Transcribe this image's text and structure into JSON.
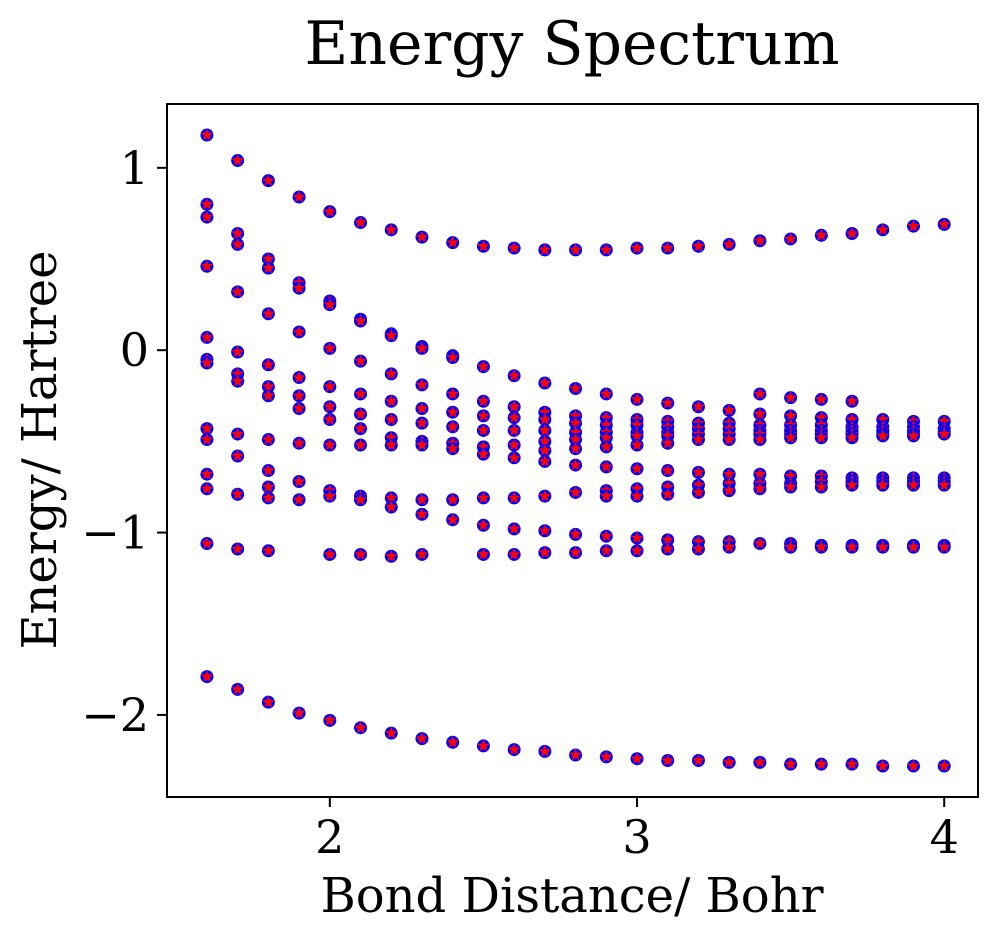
{
  "chart_data": {
    "type": "scatter",
    "title": "Energy Spectrum",
    "xlabel": "Bond Distance/ Bohr",
    "ylabel": "Energy/ Hartree",
    "xlim": [
      1.47,
      4.11
    ],
    "ylim": [
      -2.45,
      1.35
    ],
    "xticks": [
      2,
      3,
      4
    ],
    "xtick_labels": [
      "2",
      "3",
      "4"
    ],
    "yticks": [
      1,
      0,
      -1,
      -2
    ],
    "ytick_labels": [
      "1",
      "0",
      "−1",
      "−2"
    ],
    "grid": false,
    "legend": null,
    "marker_styles": {
      "exact": {
        "shape": "circle",
        "color": "#0000ff"
      },
      "computed": {
        "shape": "star",
        "color": "#ff0000"
      }
    },
    "x": [
      1.6,
      1.7,
      1.8,
      1.9,
      2.0,
      2.1,
      2.2,
      2.3,
      2.4,
      2.5,
      2.6,
      2.7,
      2.8,
      2.9,
      3.0,
      3.1,
      3.2,
      3.3,
      3.4,
      3.5,
      3.6,
      3.7,
      3.8,
      3.9,
      4.0
    ],
    "levels": [
      [
        1.6,
        1.18
      ],
      [
        1.6,
        0.8
      ],
      [
        1.6,
        0.73
      ],
      [
        1.6,
        0.46
      ],
      [
        1.6,
        0.07
      ],
      [
        1.6,
        -0.05
      ],
      [
        1.6,
        -0.07
      ],
      [
        1.6,
        -0.43
      ],
      [
        1.6,
        -0.49
      ],
      [
        1.6,
        -0.68
      ],
      [
        1.6,
        -0.76
      ],
      [
        1.6,
        -1.06
      ],
      [
        1.6,
        -1.79
      ],
      [
        1.7,
        1.04
      ],
      [
        1.7,
        0.64
      ],
      [
        1.7,
        0.58
      ],
      [
        1.7,
        0.32
      ],
      [
        1.7,
        -0.01
      ],
      [
        1.7,
        -0.13
      ],
      [
        1.7,
        -0.17
      ],
      [
        1.7,
        -0.46
      ],
      [
        1.7,
        -0.58
      ],
      [
        1.7,
        -0.79
      ],
      [
        1.7,
        -1.09
      ],
      [
        1.7,
        -1.86
      ],
      [
        1.8,
        0.93
      ],
      [
        1.8,
        0.5
      ],
      [
        1.8,
        0.45
      ],
      [
        1.8,
        0.2
      ],
      [
        1.8,
        -0.08
      ],
      [
        1.8,
        -0.2
      ],
      [
        1.8,
        -0.25
      ],
      [
        1.8,
        -0.49
      ],
      [
        1.8,
        -0.66
      ],
      [
        1.8,
        -0.75
      ],
      [
        1.8,
        -0.81
      ],
      [
        1.8,
        -1.1
      ],
      [
        1.8,
        -1.93
      ],
      [
        1.9,
        0.84
      ],
      [
        1.9,
        0.37
      ],
      [
        1.9,
        0.34
      ],
      [
        1.9,
        0.1
      ],
      [
        1.9,
        -0.15
      ],
      [
        1.9,
        -0.25
      ],
      [
        1.9,
        -0.32
      ],
      [
        1.9,
        -0.51
      ],
      [
        1.9,
        -0.72
      ],
      [
        1.9,
        -0.82
      ],
      [
        1.9,
        -1.99
      ],
      [
        2.0,
        0.76
      ],
      [
        2.0,
        0.27
      ],
      [
        2.0,
        0.25
      ],
      [
        2.0,
        0.01
      ],
      [
        2.0,
        -0.2
      ],
      [
        2.0,
        -0.31
      ],
      [
        2.0,
        -0.38
      ],
      [
        2.0,
        -0.52
      ],
      [
        2.0,
        -0.77
      ],
      [
        2.0,
        -0.8
      ],
      [
        2.0,
        -1.12
      ],
      [
        2.0,
        -2.03
      ],
      [
        2.1,
        0.7
      ],
      [
        2.1,
        0.17
      ],
      [
        2.1,
        0.16
      ],
      [
        2.1,
        -0.06
      ],
      [
        2.1,
        -0.24
      ],
      [
        2.1,
        -0.35
      ],
      [
        2.1,
        -0.43
      ],
      [
        2.1,
        -0.52
      ],
      [
        2.1,
        -0.8
      ],
      [
        2.1,
        -0.82
      ],
      [
        2.1,
        -1.12
      ],
      [
        2.1,
        -2.07
      ],
      [
        2.2,
        0.66
      ],
      [
        2.2,
        0.09
      ],
      [
        2.2,
        0.08
      ],
      [
        2.2,
        -0.13
      ],
      [
        2.2,
        -0.28
      ],
      [
        2.2,
        -0.38
      ],
      [
        2.2,
        -0.48
      ],
      [
        2.2,
        -0.52
      ],
      [
        2.2,
        -0.81
      ],
      [
        2.2,
        -0.86
      ],
      [
        2.2,
        -1.13
      ],
      [
        2.2,
        -2.1
      ],
      [
        2.3,
        0.62
      ],
      [
        2.3,
        0.02
      ],
      [
        2.3,
        0.01
      ],
      [
        2.3,
        -0.19
      ],
      [
        2.3,
        -0.32
      ],
      [
        2.3,
        -0.4
      ],
      [
        2.3,
        -0.5
      ],
      [
        2.3,
        -0.52
      ],
      [
        2.3,
        -0.82
      ],
      [
        2.3,
        -0.9
      ],
      [
        2.3,
        -1.12
      ],
      [
        2.3,
        -2.13
      ],
      [
        2.4,
        0.59
      ],
      [
        2.4,
        -0.03
      ],
      [
        2.4,
        -0.04
      ],
      [
        2.4,
        -0.24
      ],
      [
        2.4,
        -0.34
      ],
      [
        2.4,
        -0.42
      ],
      [
        2.4,
        -0.51
      ],
      [
        2.4,
        -0.54
      ],
      [
        2.4,
        -0.82
      ],
      [
        2.4,
        -0.93
      ],
      [
        2.4,
        -2.15
      ],
      [
        2.5,
        0.57
      ],
      [
        2.5,
        -0.09
      ],
      [
        2.5,
        -0.28
      ],
      [
        2.5,
        -0.36
      ],
      [
        2.5,
        -0.44
      ],
      [
        2.5,
        -0.53
      ],
      [
        2.5,
        -0.57
      ],
      [
        2.5,
        -0.81
      ],
      [
        2.5,
        -0.96
      ],
      [
        2.5,
        -1.12
      ],
      [
        2.5,
        -2.17
      ],
      [
        2.6,
        0.56
      ],
      [
        2.6,
        -0.14
      ],
      [
        2.6,
        -0.31
      ],
      [
        2.6,
        -0.37
      ],
      [
        2.6,
        -0.44
      ],
      [
        2.6,
        -0.52
      ],
      [
        2.6,
        -0.59
      ],
      [
        2.6,
        -0.81
      ],
      [
        2.6,
        -0.98
      ],
      [
        2.6,
        -1.12
      ],
      [
        2.6,
        -2.19
      ],
      [
        2.7,
        0.55
      ],
      [
        2.7,
        -0.18
      ],
      [
        2.7,
        -0.34
      ],
      [
        2.7,
        -0.38
      ],
      [
        2.7,
        -0.44
      ],
      [
        2.7,
        -0.5
      ],
      [
        2.7,
        -0.55
      ],
      [
        2.7,
        -0.61
      ],
      [
        2.7,
        -0.8
      ],
      [
        2.7,
        -0.99
      ],
      [
        2.7,
        -1.11
      ],
      [
        2.7,
        -2.2
      ],
      [
        2.8,
        0.55
      ],
      [
        2.8,
        -0.21
      ],
      [
        2.8,
        -0.36
      ],
      [
        2.8,
        -0.4
      ],
      [
        2.8,
        -0.45
      ],
      [
        2.8,
        -0.49
      ],
      [
        2.8,
        -0.54
      ],
      [
        2.8,
        -0.63
      ],
      [
        2.8,
        -0.78
      ],
      [
        2.8,
        -1.01
      ],
      [
        2.8,
        -1.11
      ],
      [
        2.8,
        -2.22
      ],
      [
        2.9,
        0.55
      ],
      [
        2.9,
        -0.24
      ],
      [
        2.9,
        -0.37
      ],
      [
        2.9,
        -0.41
      ],
      [
        2.9,
        -0.45
      ],
      [
        2.9,
        -0.48
      ],
      [
        2.9,
        -0.53
      ],
      [
        2.9,
        -0.64
      ],
      [
        2.9,
        -0.77
      ],
      [
        2.9,
        -0.8
      ],
      [
        2.9,
        -1.02
      ],
      [
        2.9,
        -1.1
      ],
      [
        2.9,
        -2.23
      ],
      [
        3.0,
        0.56
      ],
      [
        3.0,
        -0.27
      ],
      [
        3.0,
        -0.38
      ],
      [
        3.0,
        -0.41
      ],
      [
        3.0,
        -0.45
      ],
      [
        3.0,
        -0.47
      ],
      [
        3.0,
        -0.52
      ],
      [
        3.0,
        -0.65
      ],
      [
        3.0,
        -0.76
      ],
      [
        3.0,
        -0.8
      ],
      [
        3.0,
        -1.03
      ],
      [
        3.0,
        -1.1
      ],
      [
        3.0,
        -2.24
      ],
      [
        3.1,
        0.56
      ],
      [
        3.1,
        -0.29
      ],
      [
        3.1,
        -0.39
      ],
      [
        3.1,
        -0.42
      ],
      [
        3.1,
        -0.45
      ],
      [
        3.1,
        -0.47
      ],
      [
        3.1,
        -0.51
      ],
      [
        3.1,
        -0.66
      ],
      [
        3.1,
        -0.75
      ],
      [
        3.1,
        -0.79
      ],
      [
        3.1,
        -1.04
      ],
      [
        3.1,
        -1.09
      ],
      [
        3.1,
        -2.25
      ],
      [
        3.2,
        0.57
      ],
      [
        3.2,
        -0.31
      ],
      [
        3.2,
        -0.4
      ],
      [
        3.2,
        -0.43
      ],
      [
        3.2,
        -0.46
      ],
      [
        3.2,
        -0.49
      ],
      [
        3.2,
        -0.67
      ],
      [
        3.2,
        -0.74
      ],
      [
        3.2,
        -0.78
      ],
      [
        3.2,
        -1.05
      ],
      [
        3.2,
        -1.09
      ],
      [
        3.2,
        -2.25
      ],
      [
        3.3,
        0.58
      ],
      [
        3.3,
        -0.33
      ],
      [
        3.3,
        -0.4
      ],
      [
        3.3,
        -0.43
      ],
      [
        3.3,
        -0.46
      ],
      [
        3.3,
        -0.49
      ],
      [
        3.3,
        -0.68
      ],
      [
        3.3,
        -0.73
      ],
      [
        3.3,
        -0.77
      ],
      [
        3.3,
        -1.05
      ],
      [
        3.3,
        -1.08
      ],
      [
        3.3,
        -2.26
      ],
      [
        3.4,
        0.6
      ],
      [
        3.4,
        -0.24
      ],
      [
        3.4,
        -0.35
      ],
      [
        3.4,
        -0.41
      ],
      [
        3.4,
        -0.44
      ],
      [
        3.4,
        -0.46
      ],
      [
        3.4,
        -0.49
      ],
      [
        3.4,
        -0.68
      ],
      [
        3.4,
        -0.73
      ],
      [
        3.4,
        -0.76
      ],
      [
        3.4,
        -1.06
      ],
      [
        3.4,
        -2.26
      ],
      [
        3.5,
        0.61
      ],
      [
        3.5,
        -0.26
      ],
      [
        3.5,
        -0.36
      ],
      [
        3.5,
        -0.41
      ],
      [
        3.5,
        -0.44
      ],
      [
        3.5,
        -0.46
      ],
      [
        3.5,
        -0.48
      ],
      [
        3.5,
        -0.69
      ],
      [
        3.5,
        -0.73
      ],
      [
        3.5,
        -0.75
      ],
      [
        3.5,
        -1.06
      ],
      [
        3.5,
        -1.08
      ],
      [
        3.5,
        -2.27
      ],
      [
        3.6,
        0.63
      ],
      [
        3.6,
        -0.27
      ],
      [
        3.6,
        -0.37
      ],
      [
        3.6,
        -0.41
      ],
      [
        3.6,
        -0.44
      ],
      [
        3.6,
        -0.46
      ],
      [
        3.6,
        -0.48
      ],
      [
        3.6,
        -0.69
      ],
      [
        3.6,
        -0.72
      ],
      [
        3.6,
        -0.75
      ],
      [
        3.6,
        -1.07
      ],
      [
        3.6,
        -1.08
      ],
      [
        3.6,
        -2.27
      ],
      [
        3.7,
        0.64
      ],
      [
        3.7,
        -0.28
      ],
      [
        3.7,
        -0.38
      ],
      [
        3.7,
        -0.42
      ],
      [
        3.7,
        -0.44
      ],
      [
        3.7,
        -0.46
      ],
      [
        3.7,
        -0.48
      ],
      [
        3.7,
        -0.7
      ],
      [
        3.7,
        -0.72
      ],
      [
        3.7,
        -0.74
      ],
      [
        3.7,
        -1.07
      ],
      [
        3.7,
        -1.08
      ],
      [
        3.7,
        -2.27
      ],
      [
        3.8,
        0.66
      ],
      [
        3.8,
        -0.38
      ],
      [
        3.8,
        -0.42
      ],
      [
        3.8,
        -0.44
      ],
      [
        3.8,
        -0.46
      ],
      [
        3.8,
        -0.47
      ],
      [
        3.8,
        -0.7
      ],
      [
        3.8,
        -0.72
      ],
      [
        3.8,
        -0.74
      ],
      [
        3.8,
        -1.07
      ],
      [
        3.8,
        -1.08
      ],
      [
        3.8,
        -2.28
      ],
      [
        3.9,
        0.68
      ],
      [
        3.9,
        -0.39
      ],
      [
        3.9,
        -0.42
      ],
      [
        3.9,
        -0.44
      ],
      [
        3.9,
        -0.46
      ],
      [
        3.9,
        -0.47
      ],
      [
        3.9,
        -0.7
      ],
      [
        3.9,
        -0.72
      ],
      [
        3.9,
        -0.74
      ],
      [
        3.9,
        -1.07
      ],
      [
        3.9,
        -1.08
      ],
      [
        3.9,
        -2.28
      ],
      [
        4.0,
        0.69
      ],
      [
        4.0,
        -0.39
      ],
      [
        4.0,
        -0.43
      ],
      [
        4.0,
        -0.45
      ],
      [
        4.0,
        -0.46
      ],
      [
        4.0,
        -0.7
      ],
      [
        4.0,
        -0.72
      ],
      [
        4.0,
        -0.74
      ],
      [
        4.0,
        -1.07
      ],
      [
        4.0,
        -1.08
      ],
      [
        4.0,
        -2.28
      ]
    ]
  }
}
